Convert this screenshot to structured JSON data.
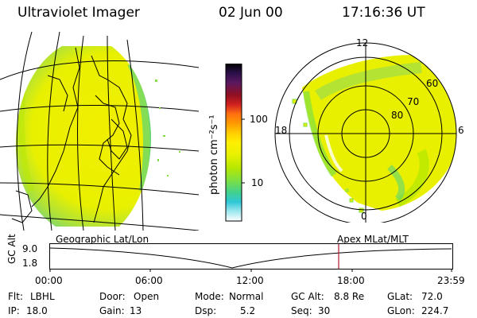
{
  "header": {
    "title": "Ultraviolet Imager",
    "date": "02 Jun 00",
    "time": "17:16:36 UT"
  },
  "colorbar": {
    "unit_label": "photon cm⁻²s⁻¹",
    "ticks": [
      "100",
      "10"
    ],
    "colors": [
      "#000000",
      "#2a1048",
      "#5a1860",
      "#901020",
      "#d02020",
      "#ff7010",
      "#ff9a00",
      "#ffcc00",
      "#fff000",
      "#e8f000",
      "#b8e800",
      "#80e040",
      "#40d090",
      "#30c8d8",
      "#a0e8f0",
      "#ffffff"
    ]
  },
  "polar_plot": {
    "mlt_labels": {
      "top": "12",
      "left": "18",
      "right": "6",
      "bottom": "0"
    },
    "lat_labels": [
      "60",
      "70",
      "80"
    ]
  },
  "projections": {
    "left": "Geographic Lat/Lon",
    "right": "Apex MLat/MLT"
  },
  "alt_plot": {
    "ylabel": "GC Alt",
    "ymax": "9.0",
    "ymin": "1.8",
    "xticks": [
      "00:00",
      "06:00",
      "12:00",
      "18:00",
      "23:59"
    ],
    "marker_color": "#b01830"
  },
  "info": {
    "row1": [
      {
        "label": "Flt:",
        "value": "LBHL"
      },
      {
        "label": "Door:",
        "value": "Open"
      },
      {
        "label": "Mode:",
        "value": "Normal"
      },
      {
        "label": "GC Alt:",
        "value": "8.8 Re"
      },
      {
        "label": "GLat:",
        "value": "72.0"
      }
    ],
    "row2": [
      {
        "label": "IP:",
        "value": "18.0"
      },
      {
        "label": "Gain:",
        "value": "13"
      },
      {
        "label": "Dsp:",
        "value": "5.2"
      },
      {
        "label": "Seq:",
        "value": "30"
      },
      {
        "label": "GLon:",
        "value": "224.7"
      }
    ]
  }
}
